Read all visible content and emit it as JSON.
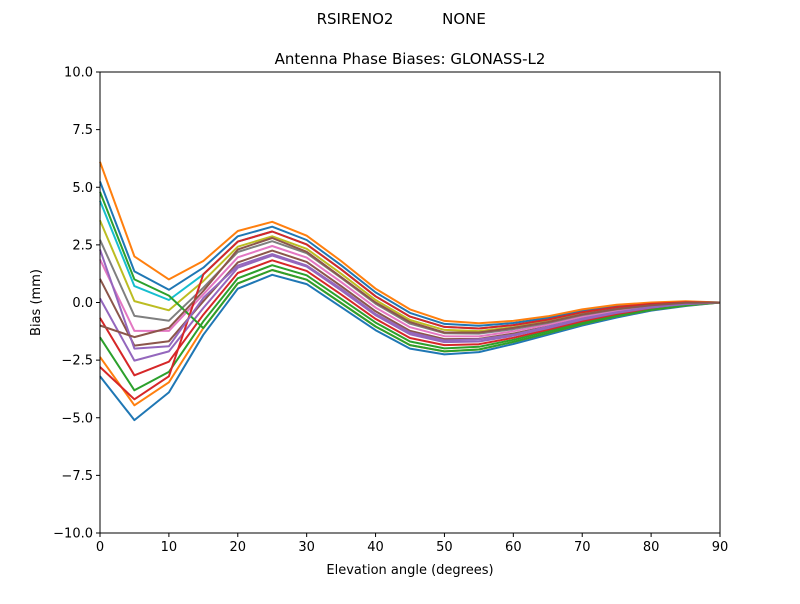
{
  "suptitle": {
    "left": "RSIRENO2",
    "right": "NONE"
  },
  "chart_data": {
    "type": "line",
    "title": "Antenna Phase Biases: GLONASS-L2",
    "xlabel": "Elevation angle (degrees)",
    "ylabel": "Bias (mm)",
    "xlim": [
      0,
      90
    ],
    "ylim": [
      -10,
      10
    ],
    "xticks": [
      0,
      10,
      20,
      30,
      40,
      50,
      60,
      70,
      80,
      90
    ],
    "xtick_labels": [
      "0",
      "10",
      "20",
      "30",
      "40",
      "50",
      "60",
      "70",
      "80",
      "90"
    ],
    "yticks": [
      10,
      7.5,
      5,
      2.5,
      0,
      -2.5,
      -5,
      -7.5,
      -10
    ],
    "ytick_labels": [
      "10.0",
      "7.5",
      "5.0",
      "2.5",
      "0.0",
      "−2.5",
      "−5.0",
      "−7.5",
      "−10.0"
    ],
    "grid": false,
    "colors": [
      "#1f77b4",
      "#ff7f0e",
      "#2ca02c",
      "#d62728",
      "#9467bd",
      "#8c564b",
      "#e377c2",
      "#7f7f7f",
      "#bcbd22",
      "#17becf"
    ],
    "x": [
      0,
      5,
      10,
      15,
      20,
      25,
      30,
      35,
      40,
      45,
      50,
      55,
      60,
      65,
      70,
      75,
      80,
      85,
      90
    ],
    "series": [
      {
        "name": "s0",
        "values": [
          -3.2,
          -5.1,
          -3.9,
          -1.4,
          0.6,
          1.2,
          0.8,
          -0.2,
          -1.2,
          -2.0,
          -2.25,
          -2.15,
          -1.8,
          -1.4,
          -1.0,
          -0.65,
          -0.35,
          -0.15,
          0
        ]
      },
      {
        "name": "s1",
        "values": [
          -2.36,
          -4.46,
          -3.46,
          -1.11,
          0.83,
          1.41,
          0.99,
          -0.02,
          -1.04,
          -1.85,
          -2.12,
          -2.04,
          -1.71,
          -1.33,
          -0.94,
          -0.6,
          -0.32,
          -0.13,
          0
        ]
      },
      {
        "name": "s2",
        "values": [
          -1.51,
          -3.81,
          -3.01,
          -0.82,
          1.05,
          1.62,
          1.18,
          0.16,
          -0.87,
          -1.69,
          -1.99,
          -1.92,
          -1.62,
          -1.25,
          -0.87,
          -0.55,
          -0.29,
          -0.11,
          0
        ]
      },
      {
        "name": "s3",
        "values": [
          -0.67,
          -3.16,
          -2.57,
          -0.53,
          1.28,
          1.83,
          1.37,
          0.35,
          -0.71,
          -1.54,
          -1.85,
          -1.81,
          -1.53,
          -1.18,
          -0.81,
          -0.5,
          -0.25,
          -0.1,
          0
        ]
      },
      {
        "name": "s4",
        "values": [
          0.18,
          -2.52,
          -2.12,
          -0.24,
          1.51,
          2.04,
          1.56,
          0.53,
          -0.55,
          -1.38,
          -1.72,
          -1.69,
          -1.44,
          -1.11,
          -0.74,
          -0.45,
          -0.22,
          -0.08,
          0
        ]
      },
      {
        "name": "s5",
        "values": [
          1.03,
          -1.87,
          -1.68,
          0.05,
          1.74,
          2.25,
          1.76,
          0.71,
          -0.38,
          -1.23,
          -1.59,
          -1.58,
          -1.35,
          -1.04,
          -0.68,
          -0.4,
          -0.19,
          -0.06,
          0
        ]
      },
      {
        "name": "s6",
        "values": [
          1.87,
          -1.23,
          -1.23,
          0.35,
          1.96,
          2.45,
          1.95,
          0.89,
          -0.22,
          -1.07,
          -1.46,
          -1.47,
          -1.25,
          -0.96,
          -0.62,
          -0.35,
          -0.16,
          -0.04,
          0
        ]
      },
      {
        "name": "s7",
        "values": [
          2.72,
          -0.58,
          -0.79,
          0.64,
          2.19,
          2.66,
          2.14,
          1.07,
          -0.05,
          -0.92,
          -1.33,
          -1.35,
          -1.16,
          -0.89,
          -0.55,
          -0.3,
          -0.13,
          -0.02,
          0
        ]
      },
      {
        "name": "s8",
        "values": [
          3.56,
          0.06,
          -0.34,
          0.93,
          2.42,
          2.87,
          2.33,
          1.25,
          0.11,
          -0.76,
          -1.19,
          -1.24,
          -1.07,
          -0.82,
          -0.49,
          -0.25,
          -0.1,
          0.0,
          0
        ]
      },
      {
        "name": "s9",
        "values": [
          4.41,
          0.71,
          0.11,
          1.22,
          2.64,
          3.08,
          2.52,
          1.44,
          0.27,
          -0.61,
          -1.06,
          -1.13,
          -0.98,
          -0.74,
          -0.42,
          -0.2,
          -0.06,
          0.01,
          0
        ]
      },
      {
        "name": "s10",
        "values": [
          5.25,
          1.35,
          0.55,
          1.51,
          2.87,
          3.29,
          2.71,
          1.62,
          0.44,
          -0.45,
          -0.93,
          -1.01,
          -0.89,
          -0.67,
          -0.36,
          -0.15,
          -0.03,
          0.03,
          0
        ]
      },
      {
        "name": "s11",
        "values": [
          6.1,
          2.0,
          1.0,
          1.8,
          3.1,
          3.5,
          2.9,
          1.8,
          0.6,
          -0.3,
          -0.8,
          -0.9,
          -0.8,
          -0.6,
          -0.3,
          -0.1,
          0.0,
          0.05,
          0
        ]
      },
      {
        "name": "s12",
        "values": [
          4.8,
          1.0,
          0.3,
          -1.11,
          0.83,
          1.41,
          0.99,
          -0.02,
          -1.04,
          -1.85,
          -2.12,
          -2.04,
          -1.71,
          -1.33,
          -0.94,
          -0.6,
          -0.32,
          -0.13,
          0
        ]
      },
      {
        "name": "s13",
        "values": [
          -2.8,
          -4.2,
          -3.2,
          1.22,
          2.64,
          3.08,
          2.52,
          1.44,
          0.27,
          -0.61,
          -1.06,
          -1.13,
          -0.98,
          -0.74,
          -0.42,
          -0.2,
          -0.06,
          0.01,
          0
        ]
      },
      {
        "name": "s14",
        "values": [
          2.3,
          -2.0,
          -1.9,
          0.2,
          1.6,
          2.1,
          1.6,
          0.6,
          -0.5,
          -1.3,
          -1.65,
          -1.6,
          -1.4,
          -1.05,
          -0.7,
          -0.42,
          -0.2,
          -0.07,
          0
        ]
      },
      {
        "name": "s15",
        "values": [
          -1.0,
          -1.5,
          -1.1,
          0.5,
          2.3,
          2.8,
          2.2,
          1.1,
          0.0,
          -0.85,
          -1.3,
          -1.3,
          -1.1,
          -0.85,
          -0.52,
          -0.28,
          -0.12,
          -0.01,
          0
        ]
      }
    ]
  }
}
